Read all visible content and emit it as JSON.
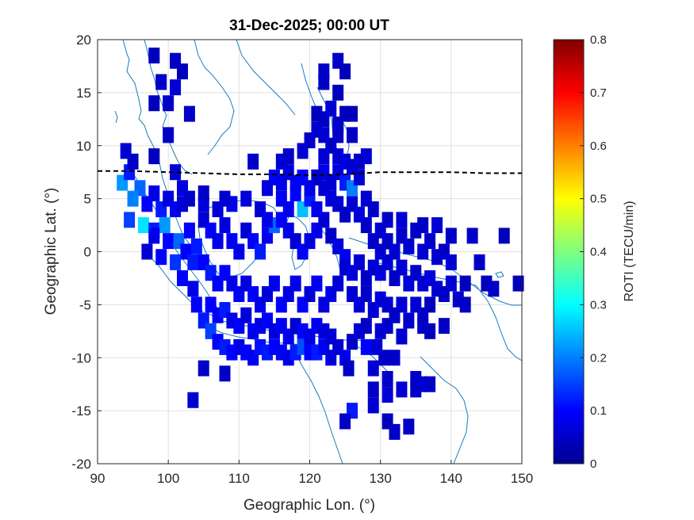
{
  "chart_data": {
    "type": "heatmap",
    "title": "31-Dec-2025; 00:00 UT",
    "xlabel": "Geographic Lon. (°)",
    "ylabel": "Geographic Lat. (°)",
    "xlim": [
      90,
      150
    ],
    "ylim": [
      -20,
      20
    ],
    "xticks": [
      "90",
      "100",
      "110",
      "120",
      "130",
      "140",
      "150"
    ],
    "yticks": [
      "-20",
      "-15",
      "-10",
      "-5",
      "0",
      "5",
      "10",
      "15",
      "20"
    ],
    "grid": true,
    "colorbar": {
      "label": "ROTI (TECU/min)",
      "range": [
        0,
        0.8
      ],
      "ticks": [
        "0",
        "0.1",
        "0.2",
        "0.3",
        "0.4",
        "0.5",
        "0.6",
        "0.7",
        "0.8"
      ],
      "colormap": "jet"
    },
    "magnetic_equator": {
      "style": "dashed",
      "color": "#000000",
      "points": [
        [
          90,
          7.6
        ],
        [
          95,
          7.6
        ],
        [
          100,
          7.5
        ],
        [
          105,
          7.4
        ],
        [
          110,
          7.3
        ],
        [
          115,
          7.3
        ],
        [
          120,
          7.2
        ],
        [
          125,
          7.3
        ],
        [
          130,
          7.5
        ],
        [
          135,
          7.5
        ],
        [
          140,
          7.5
        ],
        [
          145,
          7.4
        ],
        [
          150,
          7.4
        ]
      ]
    },
    "cells": [
      [
        93.5,
        6.5,
        0.22
      ],
      [
        94.5,
        7.5,
        0.12
      ],
      [
        96,
        6,
        0.18
      ],
      [
        95,
        5,
        0.2
      ],
      [
        97,
        4.5,
        0.1
      ],
      [
        98,
        5.5,
        0.08
      ],
      [
        99,
        4,
        0.12
      ],
      [
        100,
        5,
        0.07
      ],
      [
        101,
        4,
        0.09
      ],
      [
        102,
        4.5,
        0.06
      ],
      [
        103,
        5,
        0.05
      ],
      [
        94.5,
        3,
        0.15
      ],
      [
        96.5,
        2.5,
        0.28
      ],
      [
        98,
        2,
        0.12
      ],
      [
        99.5,
        2.5,
        0.22
      ],
      [
        100,
        1,
        0.1
      ],
      [
        101.5,
        1,
        0.18
      ],
      [
        102.5,
        0,
        0.1
      ],
      [
        103.5,
        -1,
        0.12
      ],
      [
        97,
        0,
        0.06
      ],
      [
        99,
        -0.5,
        0.1
      ],
      [
        98,
        1.5,
        0.08
      ],
      [
        101,
        -1,
        0.14
      ],
      [
        102,
        -2.5,
        0.1
      ],
      [
        103.5,
        -3.5,
        0.08
      ],
      [
        104,
        -5,
        0.1
      ],
      [
        105,
        -6.5,
        0.12
      ],
      [
        106,
        -7.5,
        0.15
      ],
      [
        107,
        -8.5,
        0.1
      ],
      [
        108,
        -9,
        0.12
      ],
      [
        109,
        -9.5,
        0.1
      ],
      [
        110,
        -9,
        0.08
      ],
      [
        111,
        -9.5,
        0.1
      ],
      [
        112,
        -10,
        0.09
      ],
      [
        113,
        -9,
        0.11
      ],
      [
        114,
        -9.5,
        0.12
      ],
      [
        115,
        -9,
        0.1
      ],
      [
        116,
        -9.5,
        0.09
      ],
      [
        117,
        -10,
        0.08
      ],
      [
        118,
        -9.5,
        0.12
      ],
      [
        119,
        -9,
        0.16
      ],
      [
        120,
        -9.5,
        0.1
      ],
      [
        121,
        -9.5,
        0.12
      ],
      [
        122,
        -9,
        0.09
      ],
      [
        123,
        -10,
        0.07
      ],
      [
        124,
        -9,
        0.06
      ],
      [
        125,
        -10,
        0.08
      ],
      [
        105,
        3,
        0.06
      ],
      [
        106,
        2,
        0.1
      ],
      [
        107,
        1,
        0.08
      ],
      [
        108,
        2.5,
        0.07
      ],
      [
        109,
        1,
        0.09
      ],
      [
        110,
        0,
        0.08
      ],
      [
        111,
        2,
        0.06
      ],
      [
        112,
        1,
        0.1
      ],
      [
        113,
        0,
        0.12
      ],
      [
        114,
        1.5,
        0.08
      ],
      [
        115,
        2.5,
        0.18
      ],
      [
        116,
        3,
        0.1
      ],
      [
        117,
        2,
        0.08
      ],
      [
        118,
        1,
        0.06
      ],
      [
        119,
        0,
        0.09
      ],
      [
        120,
        1,
        0.07
      ],
      [
        121,
        2,
        0.08
      ],
      [
        122,
        3,
        0.06
      ],
      [
        123,
        1.5,
        0.05
      ],
      [
        124,
        0.5,
        0.07
      ],
      [
        125,
        -0.5,
        0.09
      ],
      [
        105,
        -1,
        0.1
      ],
      [
        106,
        -2,
        0.12
      ],
      [
        107,
        -3,
        0.09
      ],
      [
        108,
        -2,
        0.1
      ],
      [
        109,
        -3,
        0.08
      ],
      [
        110,
        -4,
        0.09
      ],
      [
        111,
        -3,
        0.07
      ],
      [
        112,
        -4,
        0.1
      ],
      [
        113,
        -5,
        0.08
      ],
      [
        114,
        -4,
        0.06
      ],
      [
        115,
        -3,
        0.09
      ],
      [
        116,
        -5,
        0.1
      ],
      [
        117,
        -4,
        0.07
      ],
      [
        118,
        -3,
        0.08
      ],
      [
        119,
        -5,
        0.1
      ],
      [
        120,
        -4,
        0.06
      ],
      [
        121,
        -3,
        0.09
      ],
      [
        122,
        -5,
        0.07
      ],
      [
        123,
        -4,
        0.08
      ],
      [
        124,
        -3,
        0.06
      ],
      [
        106,
        -5,
        0.1
      ],
      [
        107,
        -6,
        0.09
      ],
      [
        108,
        -5.5,
        0.12
      ],
      [
        109,
        -6.5,
        0.08
      ],
      [
        110,
        -7,
        0.1
      ],
      [
        111,
        -6,
        0.07
      ],
      [
        112,
        -7.5,
        0.09
      ],
      [
        113,
        -7,
        0.08
      ],
      [
        114,
        -6.5,
        0.1
      ],
      [
        115,
        -7.5,
        0.07
      ],
      [
        116,
        -7,
        0.09
      ],
      [
        117,
        -8,
        0.08
      ],
      [
        118,
        -7,
        0.06
      ],
      [
        119,
        -7.5,
        0.1
      ],
      [
        120,
        -8,
        0.08
      ],
      [
        121,
        -7,
        0.09
      ],
      [
        122,
        -7.5,
        0.07
      ],
      [
        123,
        -8,
        0.06
      ],
      [
        104,
        0.5,
        0.12
      ],
      [
        103,
        2,
        0.1
      ],
      [
        105,
        4.5,
        0.07
      ],
      [
        107,
        4,
        0.06
      ],
      [
        109,
        4.5,
        0.08
      ],
      [
        111,
        5,
        0.07
      ],
      [
        113,
        4,
        0.06
      ],
      [
        114,
        3,
        0.08
      ],
      [
        116,
        5,
        0.09
      ],
      [
        117,
        4,
        0.08
      ],
      [
        118,
        5.5,
        0.1
      ],
      [
        119,
        4,
        0.25
      ],
      [
        120,
        5,
        0.12
      ],
      [
        121,
        4,
        0.08
      ],
      [
        122,
        6,
        0.06
      ],
      [
        123,
        5,
        0.07
      ],
      [
        124,
        4.5,
        0.06
      ],
      [
        125,
        3.5,
        0.05
      ],
      [
        126,
        4.5,
        0.06
      ],
      [
        127,
        3.5,
        0.07
      ],
      [
        128,
        5,
        0.06
      ],
      [
        129,
        4,
        0.05
      ],
      [
        115,
        7,
        0.1
      ],
      [
        116,
        6.5,
        0.08
      ],
      [
        117,
        7.5,
        0.07
      ],
      [
        118,
        6.5,
        0.09
      ],
      [
        119,
        7,
        0.1
      ],
      [
        120,
        6,
        0.08
      ],
      [
        121,
        7,
        0.07
      ],
      [
        122,
        7.5,
        0.08
      ],
      [
        123,
        6.5,
        0.06
      ],
      [
        124,
        7.5,
        0.07
      ],
      [
        125,
        6.5,
        0.12
      ],
      [
        126,
        6,
        0.2
      ],
      [
        127,
        7,
        0.06
      ],
      [
        116,
        8.5,
        0.06
      ],
      [
        117,
        9,
        0.05
      ],
      [
        119,
        9.5,
        0.06
      ],
      [
        120,
        10.5,
        0.05
      ],
      [
        121,
        11.5,
        0.06
      ],
      [
        122,
        12.5,
        0.05
      ],
      [
        123,
        13.5,
        0.06
      ],
      [
        124,
        12,
        0.05
      ],
      [
        121,
        13,
        0.04
      ],
      [
        122,
        11,
        0.06
      ],
      [
        123,
        10,
        0.05
      ],
      [
        124,
        9,
        0.06
      ],
      [
        125,
        8.5,
        0.07
      ],
      [
        126,
        8,
        0.06
      ],
      [
        127,
        8.5,
        0.05
      ],
      [
        128,
        9,
        0.06
      ],
      [
        126,
        11,
        0.05
      ],
      [
        125,
        13,
        0.04
      ],
      [
        124,
        15,
        0.04
      ],
      [
        122,
        16,
        0.05
      ],
      [
        125,
        -1.5,
        0.06
      ],
      [
        126,
        -2,
        0.07
      ],
      [
        127,
        -1,
        0.06
      ],
      [
        128,
        -2.5,
        0.05
      ],
      [
        129,
        -1.5,
        0.06
      ],
      [
        130,
        -2,
        0.07
      ],
      [
        131,
        -1,
        0.06
      ],
      [
        132,
        -2.5,
        0.05
      ],
      [
        133,
        -1.5,
        0.06
      ],
      [
        134,
        -3,
        0.07
      ],
      [
        135,
        -2,
        0.05
      ],
      [
        136,
        -3,
        0.06
      ],
      [
        137,
        -2.5,
        0.07
      ],
      [
        138,
        -3.5,
        0.06
      ],
      [
        139,
        -4,
        0.05
      ],
      [
        140,
        -3,
        0.06
      ],
      [
        141,
        -4.5,
        0.05
      ],
      [
        142,
        -3,
        0.04
      ],
      [
        126,
        -4,
        0.06
      ],
      [
        127,
        -5,
        0.07
      ],
      [
        128,
        -4,
        0.05
      ],
      [
        129,
        -5.5,
        0.06
      ],
      [
        130,
        -4.5,
        0.07
      ],
      [
        131,
        -5,
        0.06
      ],
      [
        132,
        -6,
        0.05
      ],
      [
        133,
        -5,
        0.06
      ],
      [
        134,
        -6.5,
        0.05
      ],
      [
        135,
        -5,
        0.06
      ],
      [
        136,
        -6,
        0.05
      ],
      [
        137,
        -5,
        0.04
      ],
      [
        129,
        1,
        0.05
      ],
      [
        130,
        0,
        0.06
      ],
      [
        131,
        1,
        0.05
      ],
      [
        132,
        0,
        0.06
      ],
      [
        133,
        1.5,
        0.05
      ],
      [
        134,
        0.5,
        0.06
      ],
      [
        135,
        2,
        0.05
      ],
      [
        136,
        0,
        0.06
      ],
      [
        137,
        1,
        0.05
      ],
      [
        138,
        -0.5,
        0.06
      ],
      [
        139,
        0,
        0.05
      ],
      [
        140,
        -1,
        0.06
      ],
      [
        128,
        2.5,
        0.05
      ],
      [
        130,
        2,
        0.06
      ],
      [
        131,
        3,
        0.05
      ],
      [
        133,
        3,
        0.06
      ],
      [
        136,
        2.5,
        0.05
      ],
      [
        138,
        2.5,
        0.06
      ],
      [
        140,
        1.5,
        0.05
      ],
      [
        143,
        1.5,
        0.05
      ],
      [
        147.5,
        1.5,
        0.04
      ],
      [
        144,
        -1,
        0.05
      ],
      [
        145,
        -3,
        0.04
      ],
      [
        146,
        -3.5,
        0.05
      ],
      [
        149.5,
        -3,
        0.04
      ],
      [
        142,
        -5,
        0.05
      ],
      [
        139,
        -7,
        0.05
      ],
      [
        137,
        -7.5,
        0.04
      ],
      [
        136,
        -7,
        0.05
      ],
      [
        133,
        -8,
        0.06
      ],
      [
        131,
        -7,
        0.05
      ],
      [
        127,
        -7.5,
        0.06
      ],
      [
        126,
        -8.5,
        0.05
      ],
      [
        94,
        9.5,
        0.06
      ],
      [
        95,
        8.5,
        0.05
      ],
      [
        98,
        9,
        0.04
      ],
      [
        101,
        7.5,
        0.06
      ],
      [
        102,
        6,
        0.07
      ],
      [
        105,
        5.5,
        0.05
      ],
      [
        108,
        5,
        0.06
      ],
      [
        112,
        8.5,
        0.05
      ],
      [
        114,
        6,
        0.07
      ],
      [
        98,
        18.5,
        0.04
      ],
      [
        101,
        18,
        0.05
      ],
      [
        102,
        17,
        0.04
      ],
      [
        99,
        16,
        0.05
      ],
      [
        101,
        15.5,
        0.06
      ],
      [
        100,
        14,
        0.05
      ],
      [
        98,
        14,
        0.04
      ],
      [
        103,
        13,
        0.05
      ],
      [
        100,
        11,
        0.05
      ],
      [
        124,
        18,
        0.05
      ],
      [
        122,
        17,
        0.05
      ],
      [
        125,
        17,
        0.04
      ],
      [
        122,
        9,
        0.06
      ],
      [
        121,
        7,
        0.05
      ],
      [
        126,
        13,
        0.04
      ],
      [
        124,
        11,
        0.05
      ],
      [
        105,
        -11,
        0.05
      ],
      [
        108,
        -11.5,
        0.05
      ],
      [
        103.5,
        -14,
        0.06
      ],
      [
        126,
        -15,
        0.12
      ],
      [
        125,
        -16,
        0.05
      ],
      [
        129,
        -13,
        0.05
      ],
      [
        129,
        -14.5,
        0.06
      ],
      [
        131,
        -12,
        0.05
      ],
      [
        131,
        -13.5,
        0.06
      ],
      [
        131,
        -16,
        0.04
      ],
      [
        132,
        -17,
        0.05
      ],
      [
        134,
        -16.5,
        0.05
      ],
      [
        133,
        -13,
        0.06
      ],
      [
        135,
        -13,
        0.05
      ],
      [
        135,
        -12,
        0.05
      ],
      [
        136,
        -12.5,
        0.06
      ],
      [
        137,
        -12.5,
        0.05
      ],
      [
        130.5,
        -10,
        0.05
      ],
      [
        129,
        -11,
        0.06
      ],
      [
        128,
        -9,
        0.1
      ],
      [
        129.5,
        -9,
        0.06
      ],
      [
        132,
        -10,
        0.05
      ],
      [
        130,
        -7.5,
        0.06
      ],
      [
        128,
        -7,
        0.05
      ],
      [
        125.5,
        -11,
        0.05
      ]
    ]
  }
}
